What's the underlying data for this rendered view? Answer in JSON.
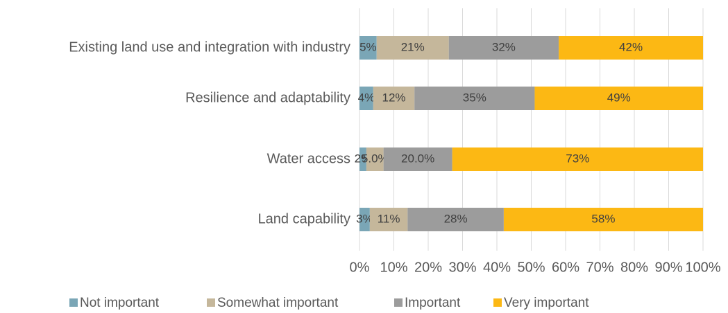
{
  "chart_data": {
    "type": "stacked-barh",
    "categories": [
      "Existing land use and integration with industry",
      "Resilience and adaptability",
      "Water access",
      "Land capability"
    ],
    "series": [
      {
        "name": "Not important",
        "color": "#7aa6b6",
        "values": [
          5,
          4,
          2,
          3
        ],
        "value_labels": [
          "5%",
          "4%",
          "2%",
          "3%"
        ]
      },
      {
        "name": "Somewhat important",
        "color": "#c5b79b",
        "values": [
          21,
          12,
          5,
          11
        ],
        "value_labels": [
          "21%",
          "12%",
          "5.0%",
          "11%"
        ]
      },
      {
        "name": "Important",
        "color": "#9c9c9c",
        "values": [
          32,
          35,
          20,
          28
        ],
        "value_labels": [
          "32%",
          "35%",
          "20.0%",
          "28%"
        ]
      },
      {
        "name": "Very important",
        "color": "#fcb814",
        "values": [
          42,
          49,
          73,
          58
        ],
        "value_labels": [
          "42%",
          "49%",
          "73%",
          "58%"
        ]
      }
    ],
    "xlim": [
      0,
      100
    ],
    "xticks": [
      {
        "value": 0,
        "label": "0%"
      },
      {
        "value": 10,
        "label": "10%"
      },
      {
        "value": 20,
        "label": "20%"
      },
      {
        "value": 30,
        "label": "30%"
      },
      {
        "value": 40,
        "label": "40%"
      },
      {
        "value": 50,
        "label": "50%"
      },
      {
        "value": 60,
        "label": "60%"
      },
      {
        "value": 70,
        "label": "70%"
      },
      {
        "value": 80,
        "label": "80%"
      },
      {
        "value": 90,
        "label": "90%"
      },
      {
        "value": 100,
        "label": "100%"
      }
    ],
    "grid": true,
    "legend": "bottom"
  }
}
